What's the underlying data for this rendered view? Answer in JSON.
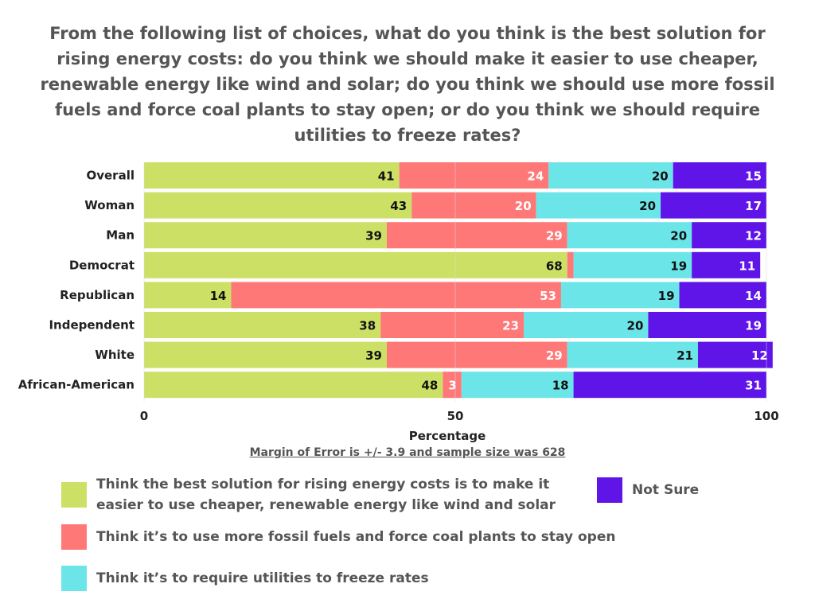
{
  "chart_data": {
    "type": "bar",
    "orientation": "horizontal",
    "stacked": true,
    "title": "From the following list of choices, what do you think is the best solution for rising energy costs: do you think we should make it easier to use cheaper, renewable energy like wind and solar; do you think we should use more fossil fuels and force coal plants to stay open; or do you think we should require utilities to freeze rates?",
    "xlabel": "Percentage",
    "xlim": [
      0,
      100
    ],
    "xticks": [
      0,
      50,
      100
    ],
    "categories": [
      "Overall",
      "Woman",
      "Man",
      "Democrat",
      "Republican",
      "Independent",
      "White",
      "African-American"
    ],
    "series": [
      {
        "name": "Think the best solution for rising energy costs is to make it easier to use cheaper, renewable energy like wind and solar",
        "color": "#cde066",
        "values": [
          41,
          43,
          39,
          68,
          14,
          38,
          39,
          48
        ]
      },
      {
        "name": "Think it’s to use more fossil fuels and force coal plants to stay open",
        "color": "#ff7878",
        "values": [
          24,
          20,
          29,
          1,
          53,
          23,
          29,
          3
        ]
      },
      {
        "name": "Think it’s to require utilities to freeze rates",
        "color": "#6ce5e8",
        "values": [
          20,
          20,
          20,
          19,
          19,
          20,
          21,
          18
        ]
      },
      {
        "name": "Not Sure",
        "color": "#5f14e8",
        "values": [
          15,
          17,
          12,
          11,
          14,
          19,
          12,
          31
        ]
      }
    ],
    "annotation": "Margin of Error is +/- 3.9 and sample size was 628",
    "legend_position": "bottom"
  }
}
